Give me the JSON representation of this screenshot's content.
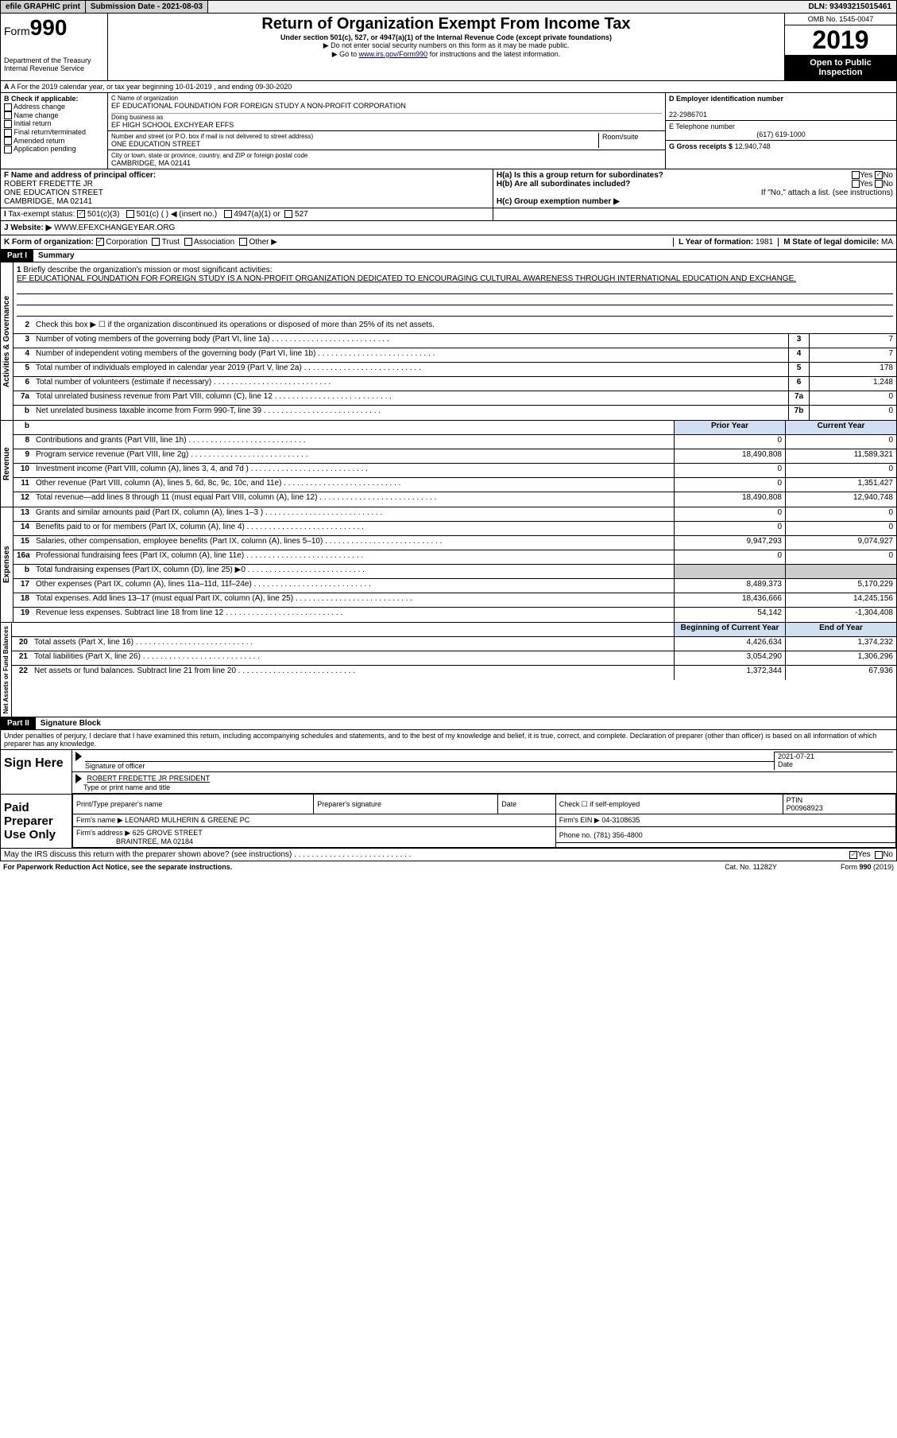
{
  "topbar": {
    "efile": "efile GRAPHIC print",
    "submission": "Submission Date - 2021-08-03",
    "dln": "DLN: 93493215015461"
  },
  "header": {
    "form_label": "Form",
    "form_num": "990",
    "dept": "Department of the Treasury",
    "irs": "Internal Revenue Service",
    "title": "Return of Organization Exempt From Income Tax",
    "sub1": "Under section 501(c), 527, or 4947(a)(1) of the Internal Revenue Code (except private foundations)",
    "sub2": "▶ Do not enter social security numbers on this form as it may be made public.",
    "sub3_pre": "▶ Go to ",
    "sub3_link": "www.irs.gov/Form990",
    "sub3_post": " for instructions and the latest information.",
    "omb": "OMB No. 1545-0047",
    "year": "2019",
    "inspection": "Open to Public Inspection"
  },
  "rowA": "A For the 2019 calendar year, or tax year beginning 10-01-2019   , and ending 09-30-2020",
  "colB": {
    "label": "B Check if applicable:",
    "items": [
      "Address change",
      "Name change",
      "Initial return",
      "Final return/terminated",
      "Amended return",
      "Application pending"
    ]
  },
  "colC": {
    "name_label": "C Name of organization",
    "name": "EF EDUCATIONAL FOUNDATION FOR FOREIGN STUDY A NON-PROFIT CORPORATION",
    "dba_label": "Doing business as",
    "dba": "EF HIGH SCHOOL EXCHYEAR EFFS",
    "addr_label": "Number and street (or P.O. box if mail is not delivered to street address)",
    "room_label": "Room/suite",
    "addr": "ONE EDUCATION STREET",
    "city_label": "City or town, state or province, country, and ZIP or foreign postal code",
    "city": "CAMBRIDGE, MA  02141"
  },
  "colD": {
    "ein_label": "D Employer identification number",
    "ein": "22-2986701",
    "phone_label": "E Telephone number",
    "phone": "(617) 619-1000",
    "gross_label": "G Gross receipts $",
    "gross": "12,940,748"
  },
  "rowF": {
    "label": "F  Name and address of principal officer:",
    "name": "ROBERT FREDETTE JR",
    "addr1": "ONE EDUCATION STREET",
    "addr2": "CAMBRIDGE, MA  02141"
  },
  "rowH": {
    "ha": "H(a)  Is this a group return for subordinates?",
    "hb": "H(b)  Are all subordinates included?",
    "hb_note": "If \"No,\" attach a list. (see instructions)",
    "hc": "H(c)  Group exemption number ▶"
  },
  "taxExempt": {
    "label": "Tax-exempt status:",
    "opt1": "501(c)(3)",
    "opt2": "501(c) (  ) ◀ (insert no.)",
    "opt3": "4947(a)(1) or",
    "opt4": "527"
  },
  "website": {
    "label": "J    Website: ▶",
    "value": "WWW.EFEXCHANGEYEAR.ORG"
  },
  "rowK": "K Form of organization:",
  "rowK_opts": [
    "Corporation",
    "Trust",
    "Association",
    "Other ▶"
  ],
  "rowL": {
    "label": "L Year of formation:",
    "value": "1981"
  },
  "rowM": {
    "label": "M State of legal domicile:",
    "value": "MA"
  },
  "part1": {
    "hdr": "Part I",
    "title": "Summary",
    "briefly_num": "1",
    "briefly_label": "Briefly describe the organization's mission or most significant activities:",
    "briefly_text": "EF EDUCATIONAL FOUNDATION FOR FOREIGN STUDY IS A NON-PROFIT ORGANIZATION DEDICATED TO ENCOURAGING CULTURAL AWARENESS THROUGH INTERNATIONAL EDUCATION AND EXCHANGE.",
    "line2": "Check this box ▶ ☐  if the organization discontinued its operations or disposed of more than 25% of its net assets.",
    "governance_tab": "Activities & Governance",
    "revenue_tab": "Revenue",
    "expenses_tab": "Expenses",
    "netassets_tab": "Net Assets or Fund Balances",
    "lines_gov": [
      {
        "n": "3",
        "t": "Number of voting members of the governing body (Part VI, line 1a)",
        "box": "3",
        "v": "7"
      },
      {
        "n": "4",
        "t": "Number of independent voting members of the governing body (Part VI, line 1b)",
        "box": "4",
        "v": "7"
      },
      {
        "n": "5",
        "t": "Total number of individuals employed in calendar year 2019 (Part V, line 2a)",
        "box": "5",
        "v": "178"
      },
      {
        "n": "6",
        "t": "Total number of volunteers (estimate if necessary)",
        "box": "6",
        "v": "1,248"
      },
      {
        "n": "7a",
        "t": "Total unrelated business revenue from Part VIII, column (C), line 12",
        "box": "7a",
        "v": "0"
      },
      {
        "n": "b",
        "t": "Net unrelated business taxable income from Form 990-T, line 39",
        "box": "7b",
        "v": "0"
      }
    ],
    "col_prior": "Prior Year",
    "col_current": "Current Year",
    "lines_rev": [
      {
        "n": "8",
        "t": "Contributions and grants (Part VIII, line 1h)",
        "p": "0",
        "c": "0"
      },
      {
        "n": "9",
        "t": "Program service revenue (Part VIII, line 2g)",
        "p": "18,490,808",
        "c": "11,589,321"
      },
      {
        "n": "10",
        "t": "Investment income (Part VIII, column (A), lines 3, 4, and 7d )",
        "p": "0",
        "c": "0"
      },
      {
        "n": "11",
        "t": "Other revenue (Part VIII, column (A), lines 5, 6d, 8c, 9c, 10c, and 11e)",
        "p": "0",
        "c": "1,351,427"
      },
      {
        "n": "12",
        "t": "Total revenue—add lines 8 through 11 (must equal Part VIII, column (A), line 12)",
        "p": "18,490,808",
        "c": "12,940,748"
      }
    ],
    "lines_exp": [
      {
        "n": "13",
        "t": "Grants and similar amounts paid (Part IX, column (A), lines 1–3 )",
        "p": "0",
        "c": "0"
      },
      {
        "n": "14",
        "t": "Benefits paid to or for members (Part IX, column (A), line 4)",
        "p": "0",
        "c": "0"
      },
      {
        "n": "15",
        "t": "Salaries, other compensation, employee benefits (Part IX, column (A), lines 5–10)",
        "p": "9,947,293",
        "c": "9,074,927"
      },
      {
        "n": "16a",
        "t": "Professional fundraising fees (Part IX, column (A), line 11e)",
        "p": "0",
        "c": "0"
      },
      {
        "n": "b",
        "t": "Total fundraising expenses (Part IX, column (D), line 25) ▶0",
        "p": "",
        "c": "",
        "grey": true
      },
      {
        "n": "17",
        "t": "Other expenses (Part IX, column (A), lines 11a–11d, 11f–24e)",
        "p": "8,489,373",
        "c": "5,170,229"
      },
      {
        "n": "18",
        "t": "Total expenses. Add lines 13–17 (must equal Part IX, column (A), line 25)",
        "p": "18,436,666",
        "c": "14,245,156"
      },
      {
        "n": "19",
        "t": "Revenue less expenses. Subtract line 18 from line 12",
        "p": "54,142",
        "c": "-1,304,408"
      }
    ],
    "col_begin": "Beginning of Current Year",
    "col_end": "End of Year",
    "lines_net": [
      {
        "n": "20",
        "t": "Total assets (Part X, line 16)",
        "p": "4,426,634",
        "c": "1,374,232"
      },
      {
        "n": "21",
        "t": "Total liabilities (Part X, line 26)",
        "p": "3,054,290",
        "c": "1,306,296"
      },
      {
        "n": "22",
        "t": "Net assets or fund balances. Subtract line 21 from line 20",
        "p": "1,372,344",
        "c": "67,936"
      }
    ]
  },
  "part2": {
    "hdr": "Part II",
    "title": "Signature Block",
    "penalty": "Under penalties of perjury, I declare that I have examined this return, including accompanying schedules and statements, and to the best of my knowledge and belief, it is true, correct, and complete. Declaration of preparer (other than officer) is based on all information of which preparer has any knowledge.",
    "sign_here": "Sign Here",
    "sig_officer": "Signature of officer",
    "sig_date": "2021-07-21",
    "sig_date_label": "Date",
    "officer_name": "ROBERT FREDETTE JR PRESIDENT",
    "officer_sub": "Type or print name and title",
    "paid": "Paid Preparer Use Only",
    "prep_name_label": "Print/Type preparer's name",
    "prep_sig_label": "Preparer's signature",
    "date_label": "Date",
    "check_self": "Check ☐ if self-employed",
    "ptin_label": "PTIN",
    "ptin": "P00968923",
    "firm_name_label": "Firm's name    ▶",
    "firm_name": "LEONARD MULHERIN & GREENE PC",
    "firm_ein_label": "Firm's EIN ▶",
    "firm_ein": "04-3108635",
    "firm_addr_label": "Firm's address ▶",
    "firm_addr1": "625 GROVE STREET",
    "firm_addr2": "BRAINTREE, MA  02184",
    "firm_phone_label": "Phone no.",
    "firm_phone": "(781) 356-4800",
    "discuss": "May the IRS discuss this return with the preparer shown above? (see instructions)"
  },
  "footer": {
    "left": "For Paperwork Reduction Act Notice, see the separate instructions.",
    "mid": "Cat. No. 11282Y",
    "right": "Form 990 (2019)"
  }
}
